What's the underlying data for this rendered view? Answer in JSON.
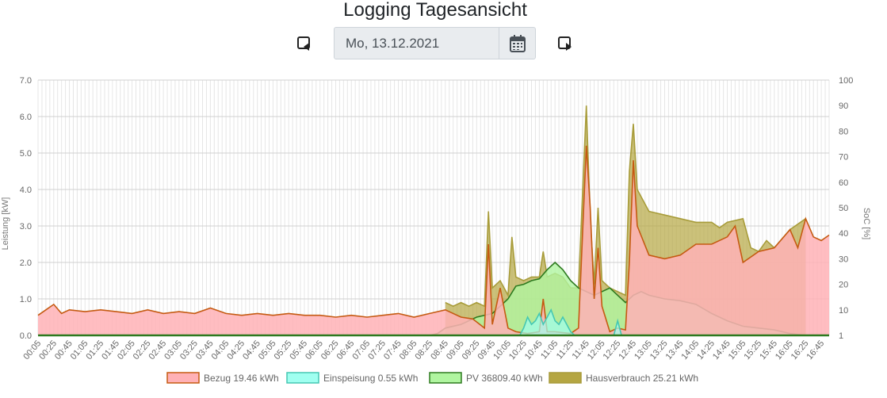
{
  "page": {
    "title": "Logging Tagesansicht",
    "date_value": "Mo, 13.12.2021"
  },
  "icons": {
    "prev": "caret-left-square-icon",
    "next": "caret-right-square-icon",
    "calendar": "calendar-icon"
  },
  "chart_data": {
    "type": "area",
    "y_left": {
      "label": "Leistung [kW]",
      "min": 0,
      "max": 7,
      "ticks": [
        "0.0",
        "1.0",
        "2.0",
        "3.0",
        "4.0",
        "5.0",
        "6.0",
        "7.0"
      ]
    },
    "y_right": {
      "label": "SoC [%]",
      "ticks": [
        "1",
        "10",
        "20",
        "30",
        "40",
        "50",
        "60",
        "70",
        "80",
        "90",
        "100"
      ]
    },
    "x_ticks": [
      "00:05",
      "00:25",
      "00:45",
      "01:05",
      "01:25",
      "01:45",
      "02:05",
      "02:25",
      "02:45",
      "03:05",
      "03:25",
      "03:45",
      "04:05",
      "04:25",
      "04:45",
      "05:05",
      "05:25",
      "05:45",
      "06:05",
      "06:25",
      "06:45",
      "07:05",
      "07:25",
      "07:45",
      "08:05",
      "08:25",
      "08:45",
      "09:05",
      "09:25",
      "09:45",
      "10:05",
      "10:25",
      "10:45",
      "11:05",
      "11:25",
      "11:45",
      "12:05",
      "12:25",
      "12:45",
      "13:05",
      "13:25",
      "13:45",
      "14:05",
      "14:25",
      "14:45",
      "15:05",
      "15:25",
      "15:45",
      "16:05",
      "16:25",
      "16:45"
    ],
    "grid": true,
    "legend_position": "bottom",
    "series": [
      {
        "name": "Bezug 19.46 kWh",
        "fill": "#ffb1b6",
        "line": "#c55a11",
        "points": [
          [
            "00:05",
            0.55
          ],
          [
            "00:15",
            0.7
          ],
          [
            "00:25",
            0.85
          ],
          [
            "00:35",
            0.6
          ],
          [
            "00:45",
            0.7
          ],
          [
            "01:05",
            0.65
          ],
          [
            "01:25",
            0.7
          ],
          [
            "01:45",
            0.65
          ],
          [
            "02:05",
            0.6
          ],
          [
            "02:25",
            0.7
          ],
          [
            "02:45",
            0.6
          ],
          [
            "03:05",
            0.65
          ],
          [
            "03:25",
            0.6
          ],
          [
            "03:45",
            0.75
          ],
          [
            "04:05",
            0.6
          ],
          [
            "04:25",
            0.55
          ],
          [
            "04:45",
            0.6
          ],
          [
            "05:05",
            0.55
          ],
          [
            "05:25",
            0.6
          ],
          [
            "05:45",
            0.55
          ],
          [
            "06:05",
            0.55
          ],
          [
            "06:25",
            0.5
          ],
          [
            "06:45",
            0.55
          ],
          [
            "07:05",
            0.5
          ],
          [
            "07:25",
            0.55
          ],
          [
            "07:45",
            0.6
          ],
          [
            "08:05",
            0.5
          ],
          [
            "08:25",
            0.6
          ],
          [
            "08:45",
            0.7
          ],
          [
            "09:05",
            0.5
          ],
          [
            "09:20",
            0.45
          ],
          [
            "09:35",
            0.2
          ],
          [
            "09:40",
            2.5
          ],
          [
            "09:45",
            0.3
          ],
          [
            "09:55",
            1.3
          ],
          [
            "10:05",
            0.2
          ],
          [
            "10:15",
            0.1
          ],
          [
            "10:30",
            0.05
          ],
          [
            "10:45",
            0.1
          ],
          [
            "10:50",
            1.0
          ],
          [
            "10:55",
            0.1
          ],
          [
            "11:05",
            0.1
          ],
          [
            "11:25",
            0.05
          ],
          [
            "11:35",
            0.2
          ],
          [
            "11:45",
            5.2
          ],
          [
            "11:50",
            3.5
          ],
          [
            "11:55",
            1.0
          ],
          [
            "12:00",
            2.4
          ],
          [
            "12:05",
            0.8
          ],
          [
            "12:15",
            0.1
          ],
          [
            "12:25",
            0.2
          ],
          [
            "12:35",
            0.15
          ],
          [
            "12:40",
            2.0
          ],
          [
            "12:45",
            4.8
          ],
          [
            "12:50",
            3.0
          ],
          [
            "13:05",
            2.2
          ],
          [
            "13:25",
            2.1
          ],
          [
            "13:45",
            2.2
          ],
          [
            "14:05",
            2.5
          ],
          [
            "14:25",
            2.5
          ],
          [
            "14:45",
            2.7
          ],
          [
            "14:55",
            3.0
          ],
          [
            "15:05",
            2.0
          ],
          [
            "15:25",
            2.3
          ],
          [
            "15:45",
            2.4
          ],
          [
            "16:05",
            2.9
          ],
          [
            "16:15",
            2.4
          ],
          [
            "16:25",
            3.2
          ],
          [
            "16:35",
            2.7
          ],
          [
            "16:45",
            2.6
          ],
          [
            "16:55",
            2.75
          ]
        ]
      },
      {
        "name": "Einspeisung 0.55 kWh",
        "fill": "#a0fff0",
        "line": "#45c7b3",
        "points": [
          [
            "10:20",
            0
          ],
          [
            "10:25",
            0.2
          ],
          [
            "10:30",
            0.5
          ],
          [
            "10:35",
            0.3
          ],
          [
            "10:40",
            0.4
          ],
          [
            "10:45",
            0.6
          ],
          [
            "10:50",
            0.3
          ],
          [
            "10:55",
            0.5
          ],
          [
            "11:00",
            0.7
          ],
          [
            "11:05",
            0.4
          ],
          [
            "11:10",
            0.3
          ],
          [
            "11:15",
            0.5
          ],
          [
            "11:20",
            0.3
          ],
          [
            "11:25",
            0.1
          ],
          [
            "11:30",
            0
          ],
          [
            "12:20",
            0
          ],
          [
            "12:25",
            0.4
          ],
          [
            "12:30",
            0
          ]
        ]
      },
      {
        "name": "PV 36809.40 kWh",
        "fill": "#b0f5a0",
        "line": "#2d7a1f",
        "points": [
          [
            "08:25",
            0
          ],
          [
            "08:35",
            0.05
          ],
          [
            "08:45",
            0.2
          ],
          [
            "09:05",
            0.3
          ],
          [
            "09:25",
            0.5
          ],
          [
            "09:45",
            0.6
          ],
          [
            "10:05",
            1.0
          ],
          [
            "10:15",
            1.35
          ],
          [
            "10:25",
            1.4
          ],
          [
            "10:35",
            1.5
          ],
          [
            "10:45",
            1.55
          ],
          [
            "10:55",
            1.8
          ],
          [
            "11:05",
            2.0
          ],
          [
            "11:15",
            1.8
          ],
          [
            "11:25",
            1.5
          ],
          [
            "11:35",
            1.3
          ],
          [
            "11:45",
            1.2
          ],
          [
            "11:55",
            1.1
          ],
          [
            "12:05",
            1.2
          ],
          [
            "12:15",
            1.3
          ],
          [
            "12:25",
            1.1
          ],
          [
            "12:35",
            0.9
          ],
          [
            "12:45",
            1.1
          ],
          [
            "12:55",
            1.2
          ],
          [
            "13:05",
            1.1
          ],
          [
            "13:25",
            1.0
          ],
          [
            "13:45",
            0.95
          ],
          [
            "14:05",
            0.85
          ],
          [
            "14:25",
            0.6
          ],
          [
            "14:45",
            0.4
          ],
          [
            "15:05",
            0.25
          ],
          [
            "15:25",
            0.2
          ],
          [
            "15:45",
            0.15
          ],
          [
            "16:05",
            0.05
          ],
          [
            "16:25",
            0
          ]
        ]
      },
      {
        "name": "Hausverbrauch 25.21 kWh",
        "fill": "#b5a642",
        "line": "#a89c3a",
        "points": [
          [
            "08:45",
            0.9
          ],
          [
            "08:55",
            0.8
          ],
          [
            "09:05",
            0.9
          ],
          [
            "09:15",
            0.8
          ],
          [
            "09:25",
            0.9
          ],
          [
            "09:35",
            0.8
          ],
          [
            "09:40",
            3.4
          ],
          [
            "09:45",
            1.3
          ],
          [
            "09:55",
            1.5
          ],
          [
            "10:05",
            1.1
          ],
          [
            "10:10",
            2.7
          ],
          [
            "10:15",
            1.6
          ],
          [
            "10:25",
            1.5
          ],
          [
            "10:35",
            1.6
          ],
          [
            "10:45",
            1.6
          ],
          [
            "10:50",
            2.3
          ],
          [
            "10:55",
            1.6
          ],
          [
            "11:05",
            1.7
          ],
          [
            "11:15",
            1.6
          ],
          [
            "11:25",
            1.3
          ],
          [
            "11:35",
            1.3
          ],
          [
            "11:45",
            6.3
          ],
          [
            "11:50",
            3.2
          ],
          [
            "11:55",
            1.4
          ],
          [
            "12:00",
            3.5
          ],
          [
            "12:05",
            1.5
          ],
          [
            "12:15",
            1.3
          ],
          [
            "12:25",
            1.2
          ],
          [
            "12:35",
            1.1
          ],
          [
            "12:40",
            4.5
          ],
          [
            "12:45",
            5.8
          ],
          [
            "12:50",
            4.0
          ],
          [
            "13:05",
            3.4
          ],
          [
            "13:25",
            3.3
          ],
          [
            "13:45",
            3.2
          ],
          [
            "14:05",
            3.1
          ],
          [
            "14:25",
            3.1
          ],
          [
            "14:35",
            2.95
          ],
          [
            "14:45",
            3.1
          ],
          [
            "15:05",
            3.2
          ],
          [
            "15:15",
            2.4
          ],
          [
            "15:25",
            2.3
          ],
          [
            "15:35",
            2.6
          ],
          [
            "15:45",
            2.4
          ],
          [
            "16:05",
            2.9
          ],
          [
            "16:25",
            3.2
          ]
        ]
      }
    ]
  }
}
